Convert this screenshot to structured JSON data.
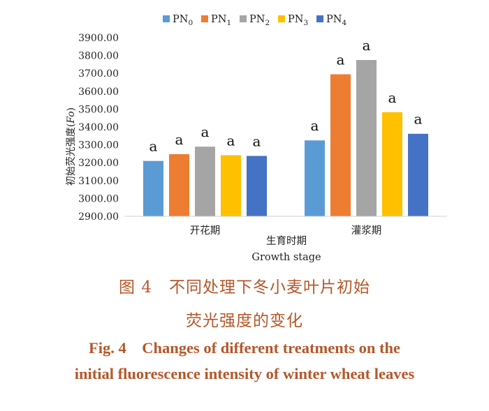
{
  "chart_data": {
    "type": "bar",
    "title": "",
    "categories": [
      "开花期",
      "灌浆期"
    ],
    "series": [
      {
        "name": "PN",
        "sub": "0",
        "color": "#5b9bd5",
        "values": [
          3210,
          3325
        ],
        "labels": [
          "a",
          "a"
        ]
      },
      {
        "name": "PN",
        "sub": "1",
        "color": "#ed7d31",
        "values": [
          3248,
          3695
        ],
        "labels": [
          "a",
          "a"
        ]
      },
      {
        "name": "PN",
        "sub": "2",
        "color": "#a5a5a5",
        "values": [
          3290,
          3775
        ],
        "labels": [
          "a",
          "a"
        ]
      },
      {
        "name": "PN",
        "sub": "3",
        "color": "#ffc000",
        "values": [
          3242,
          3483
        ],
        "labels": [
          "a",
          "a"
        ]
      },
      {
        "name": "PN",
        "sub": "4",
        "color": "#4472c4",
        "values": [
          3238,
          3362
        ],
        "labels": [
          "a",
          "a"
        ]
      }
    ],
    "ylabel": "初始荧光强度",
    "ylabel_symbol": "Fo",
    "xlabel_cn": "生育时期",
    "xlabel_en": "Growth stage",
    "ylim": [
      2900,
      3900
    ],
    "yticks": [
      2900,
      3000,
      3100,
      3200,
      3300,
      3400,
      3500,
      3600,
      3700,
      3800,
      3900
    ],
    "ytick_decimals": 2,
    "grid": false,
    "legend_position": "top"
  },
  "caption": {
    "zh_line1": "图 4　不同处理下冬小麦叶片初始",
    "zh_line2": "荧光强度的变化",
    "en_line1": "Fig. 4　Changes of different treatments on the",
    "en_line2": "initial fluorescence intensity of winter wheat leaves"
  }
}
